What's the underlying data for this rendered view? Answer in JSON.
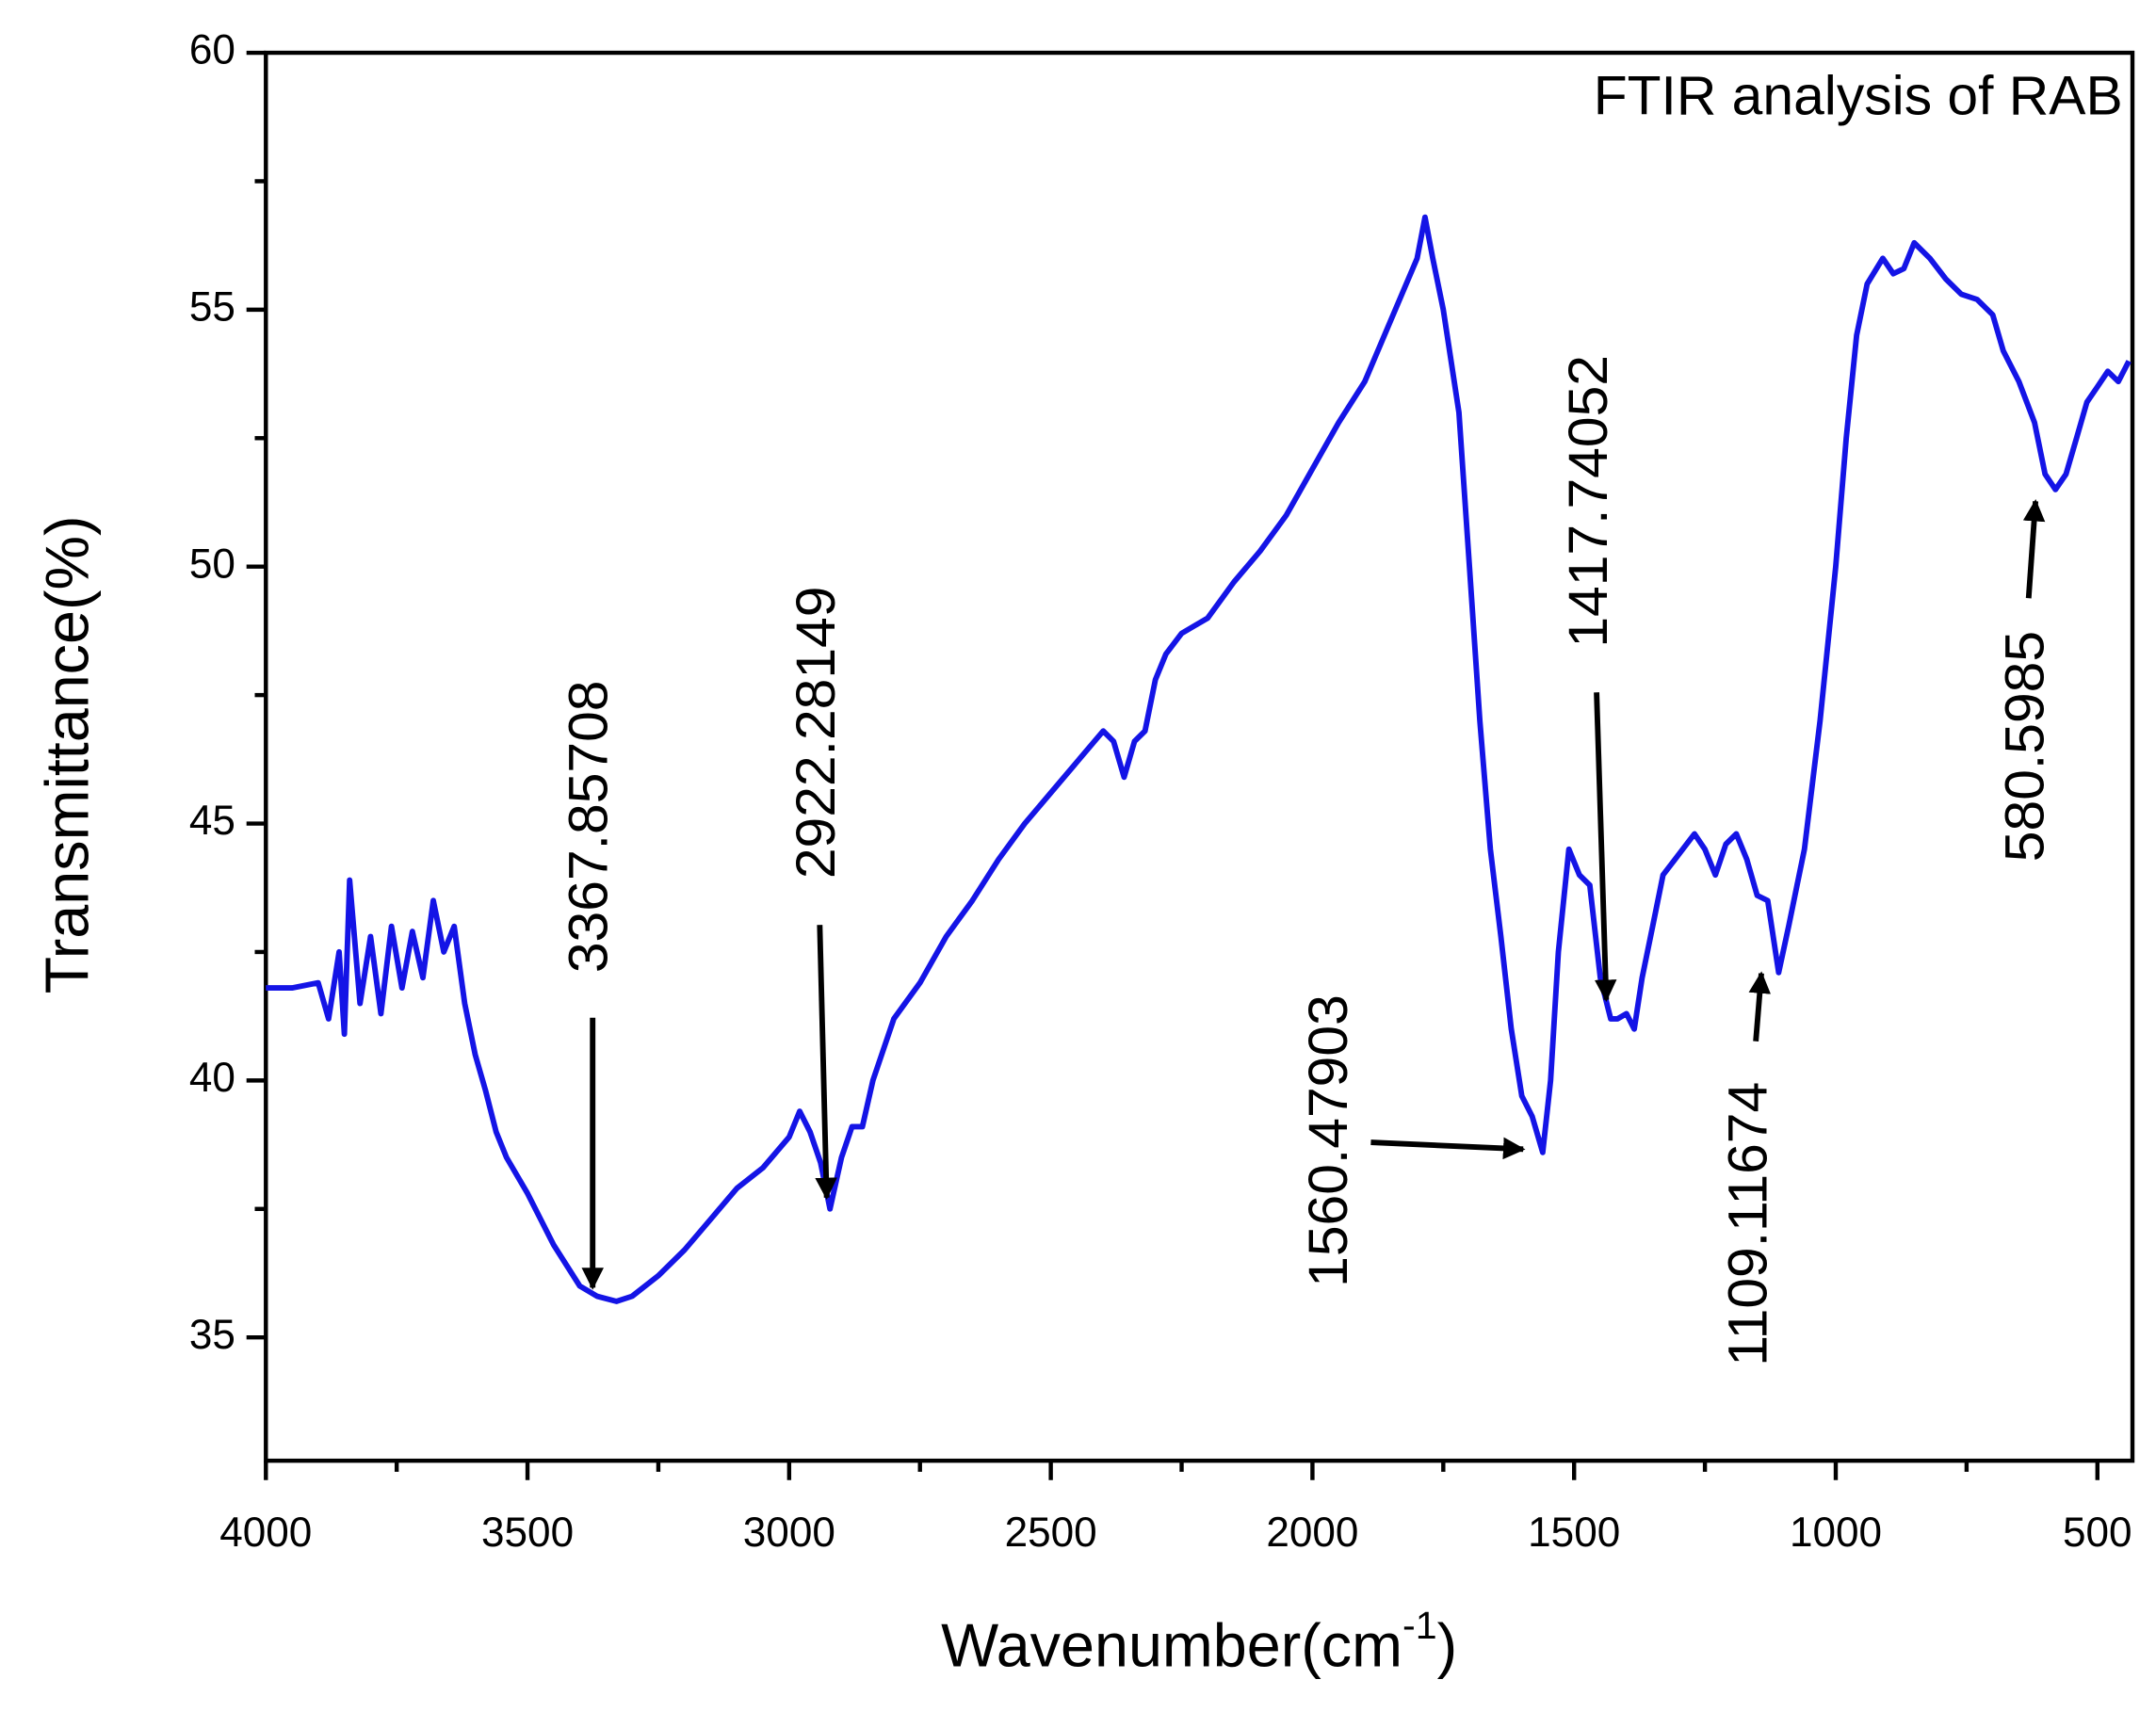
{
  "chart_data": {
    "type": "line",
    "title": "FTIR analysis of RAB",
    "xlabel": [
      "Wavenumber(cm",
      "-1",
      ")"
    ],
    "ylabel": "Transmittance(%)",
    "color": "#1414e6",
    "xlim": [
      4000,
      433
    ],
    "ylim": [
      32.6,
      60
    ],
    "xticks": [
      4000,
      3500,
      3000,
      2500,
      2000,
      1500,
      1000,
      500
    ],
    "xminorticks": [
      3750,
      3250,
      2750,
      2250,
      1750,
      1250,
      750
    ],
    "yticks": [
      35,
      40,
      45,
      50,
      55,
      60
    ],
    "yminorticks": [
      37.5,
      42.5,
      47.5,
      52.5,
      57.5
    ],
    "x": [
      4000,
      3950,
      3900,
      3880,
      3860,
      3850,
      3840,
      3820,
      3800,
      3780,
      3760,
      3740,
      3720,
      3700,
      3680,
      3660,
      3640,
      3620,
      3600,
      3580,
      3560,
      3540,
      3500,
      3450,
      3400,
      3367,
      3330,
      3300,
      3250,
      3200,
      3150,
      3100,
      3050,
      3000,
      2980,
      2960,
      2940,
      2922,
      2900,
      2880,
      2860,
      2840,
      2800,
      2750,
      2700,
      2650,
      2600,
      2550,
      2500,
      2450,
      2400,
      2380,
      2360,
      2340,
      2320,
      2300,
      2280,
      2250,
      2200,
      2150,
      2100,
      2050,
      2000,
      1950,
      1900,
      1850,
      1800,
      1785,
      1770,
      1750,
      1720,
      1700,
      1680,
      1660,
      1640,
      1620,
      1600,
      1580,
      1560,
      1545,
      1530,
      1510,
      1490,
      1470,
      1450,
      1430,
      1417,
      1400,
      1385,
      1370,
      1350,
      1330,
      1300,
      1270,
      1250,
      1230,
      1210,
      1190,
      1170,
      1150,
      1130,
      1109,
      1090,
      1060,
      1030,
      1000,
      980,
      960,
      940,
      910,
      890,
      870,
      850,
      820,
      790,
      760,
      730,
      700,
      680,
      650,
      620,
      600,
      580,
      560,
      540,
      520,
      500,
      480,
      460,
      440
    ],
    "values": [
      41.8,
      41.8,
      41.9,
      41.2,
      42.5,
      40.9,
      43.9,
      41.5,
      42.8,
      41.3,
      43.0,
      41.8,
      42.9,
      42.0,
      43.5,
      42.5,
      43.0,
      41.5,
      40.5,
      39.8,
      39.0,
      38.5,
      37.8,
      36.8,
      36.0,
      35.8,
      35.7,
      35.8,
      36.2,
      36.7,
      37.3,
      37.9,
      38.3,
      38.9,
      39.4,
      39.0,
      38.4,
      37.5,
      38.5,
      39.1,
      39.1,
      40.0,
      41.2,
      41.9,
      42.8,
      43.5,
      44.3,
      45.0,
      45.6,
      46.2,
      46.8,
      46.6,
      45.9,
      46.6,
      46.8,
      47.8,
      48.3,
      48.7,
      49.0,
      49.7,
      50.3,
      51.0,
      51.9,
      52.8,
      53.6,
      54.8,
      56.0,
      56.8,
      56.0,
      55.0,
      53.0,
      50.0,
      47.0,
      44.5,
      42.8,
      41.0,
      39.7,
      39.3,
      38.6,
      40.0,
      42.5,
      44.5,
      44.0,
      43.8,
      42.0,
      41.2,
      41.2,
      41.3,
      41.0,
      42.0,
      43.0,
      44.0,
      44.4,
      44.8,
      44.5,
      44.0,
      44.6,
      44.8,
      44.3,
      43.6,
      43.5,
      42.1,
      43.0,
      44.5,
      47.0,
      50.0,
      52.5,
      54.5,
      55.5,
      56.0,
      55.7,
      55.8,
      56.3,
      56.0,
      55.6,
      55.3,
      55.2,
      54.9,
      54.2,
      53.6,
      52.8,
      51.8,
      51.5,
      51.8,
      52.5,
      53.2,
      53.5,
      53.8,
      53.6,
      54.0
    ],
    "annotations": [
      "3367.85708",
      "2922.28149",
      "1560.47903",
      "1417.74052",
      "1109.11674",
      "580.5985"
    ]
  }
}
